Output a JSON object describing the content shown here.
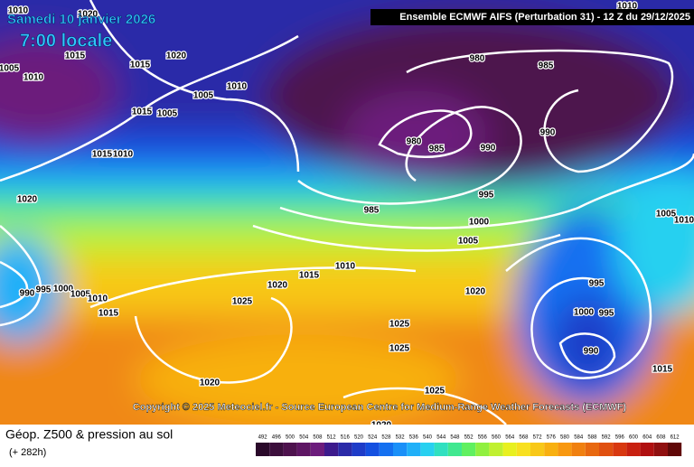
{
  "header": {
    "date": "Samedi 10 janvier 2026",
    "time": "7:00 locale",
    "model": "Ensemble ECMWF AIFS  (Perturbation 31)  -  12 Z du 29/12/2025"
  },
  "copyright": "Copyright © 2025 Meteociel.fr - Source European Centre for Medium-Range Weather Forecasts (ECMWF)",
  "isobar_labels": [
    "1010",
    "1020",
    "1015",
    "1015",
    "1020",
    "1005",
    "1010",
    "1010",
    "1005",
    "1015",
    "1005",
    "1015",
    "1010",
    "980",
    "985",
    "1010",
    "980",
    "985",
    "990",
    "990",
    "995",
    "985",
    "1000",
    "1005",
    "1005",
    "1010",
    "1020",
    "990",
    "995",
    "1000",
    "1005",
    "1010",
    "1015",
    "1015",
    "1010",
    "1020",
    "1025",
    "1020",
    "995",
    "1000",
    "995",
    "1025",
    "1025",
    "990",
    "1015",
    "1020",
    "1025",
    "1020"
  ],
  "footer": {
    "title": "Géop. Z500 & pression au sol",
    "subtitle": "(+ 282h)"
  },
  "legend": {
    "labels": [
      "492",
      "496",
      "500",
      "504",
      "508",
      "512",
      "516",
      "520",
      "524",
      "528",
      "532",
      "536",
      "540",
      "544",
      "548",
      "552",
      "556",
      "560",
      "564",
      "568",
      "572",
      "576",
      "580",
      "584",
      "588",
      "592",
      "596",
      "600",
      "604",
      "608",
      "612"
    ],
    "colors": [
      "#2a0a2a",
      "#3c0f3c",
      "#4e124e",
      "#5e1664",
      "#6c1c7c",
      "#3c1a8c",
      "#2a2aa8",
      "#1e3cc8",
      "#1450e0",
      "#1470f0",
      "#1a90f8",
      "#20b0f8",
      "#28d0f0",
      "#30e0c0",
      "#40e890",
      "#60f060",
      "#90f040",
      "#c0f030",
      "#e8f020",
      "#f8e020",
      "#f8c818",
      "#f8b010",
      "#f89810",
      "#f08010",
      "#e86810",
      "#e05010",
      "#d83810",
      "#c82010",
      "#b01010",
      "#901010",
      "#600808"
    ]
  }
}
